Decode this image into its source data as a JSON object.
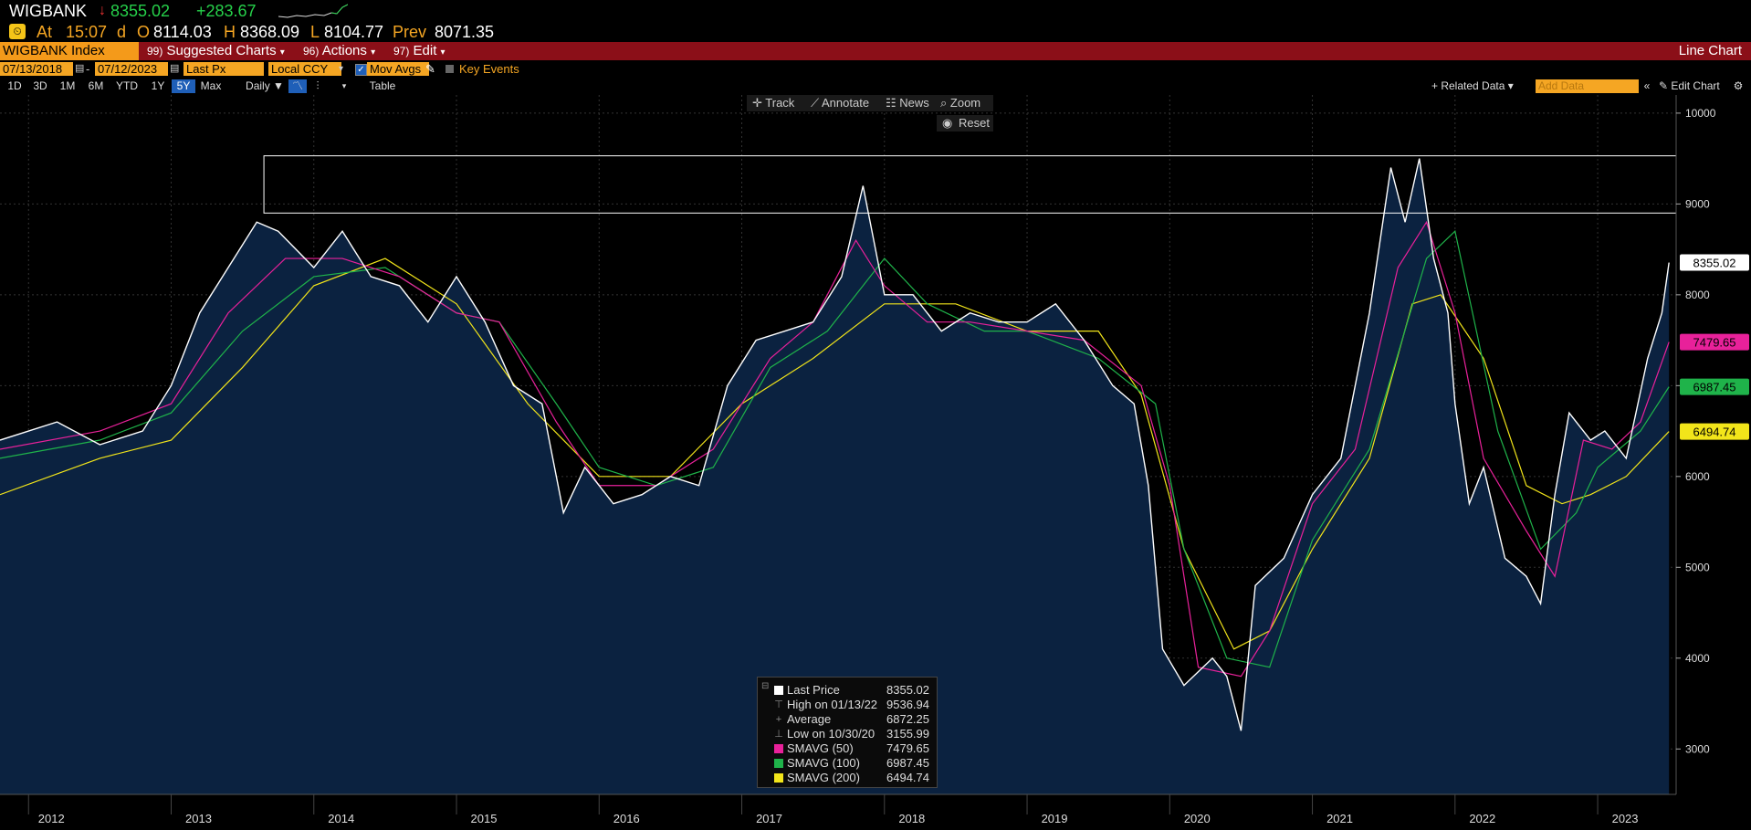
{
  "header": {
    "ticker": "WIGBANK",
    "last": "8355.02",
    "change": "+283.67",
    "at_label": "At",
    "time": "15:07",
    "d_label": "d",
    "open_label": "O",
    "open": "8114.03",
    "high_label": "H",
    "high": "8368.09",
    "low_label": "L",
    "low": "8104.77",
    "prev_label": "Prev",
    "prev": "8071.35"
  },
  "menubar": {
    "security": "WIGBANK Index",
    "suggested_num": "99)",
    "suggested": "Suggested Charts",
    "actions_num": "96)",
    "actions": "Actions",
    "edit_num": "97)",
    "edit": "Edit",
    "chart_type": "Line Chart"
  },
  "options": {
    "start_date": "07/13/2018",
    "end_date": "07/12/2023",
    "price_field": "Last Px",
    "currency": "Local CCY",
    "mov_avgs": "Mov Avgs",
    "key_events": "Key Events",
    "related_data": "+ Related Data",
    "add_data_placeholder": "Add Data",
    "edit_chart": "Edit Chart"
  },
  "ranges": [
    "1D",
    "3D",
    "1M",
    "6M",
    "YTD",
    "1Y",
    "5Y",
    "Max"
  ],
  "active_range": "5Y",
  "frequency": "Daily",
  "table_label": "Table",
  "tools": {
    "track": "Track",
    "annotate": "Annotate",
    "news": "News",
    "zoom": "Zoom",
    "reset": "Reset"
  },
  "colors": {
    "price": "#ffffff",
    "sma50": "#e8219a",
    "sma100": "#1fb34a",
    "sma200": "#f2e51a",
    "fill": "#0b2240",
    "menubar": "#8b0f18",
    "accent": "#f5a623"
  },
  "legend": [
    {
      "label": "Last Price",
      "value": "8355.02",
      "swatch": "#ffffff"
    },
    {
      "label": "High on 01/13/22",
      "value": "9536.94",
      "icon": "⊤"
    },
    {
      "label": "Average",
      "value": "6872.25",
      "icon": "+"
    },
    {
      "label": "Low on 10/30/20",
      "value": "3155.99",
      "icon": "⊥"
    },
    {
      "label": "SMAVG (50)",
      "value": "7479.65",
      "swatch": "#e8219a"
    },
    {
      "label": "SMAVG (100)",
      "value": "6987.45",
      "swatch": "#1fb34a"
    },
    {
      "label": "SMAVG (200)",
      "value": "6494.74",
      "swatch": "#f2e51a"
    }
  ],
  "chart_data": {
    "type": "line",
    "title": "",
    "ylim": [
      2500,
      10200
    ],
    "y_ticks": [
      3000,
      4000,
      5000,
      6000,
      7000,
      8000,
      9000,
      10000
    ],
    "y_tick_labels": [
      "3000",
      "4000",
      "5000",
      "6000",
      "7000",
      "8000",
      "9000",
      "10000"
    ],
    "x_labels": [
      "2012",
      "2013",
      "2014",
      "2015",
      "2016",
      "2017",
      "2018",
      "2019",
      "2020",
      "2021",
      "2022",
      "2023"
    ],
    "xlim": [
      2011.8,
      2023.55
    ],
    "x_label_positions": [
      2012,
      2013,
      2014,
      2015,
      2016,
      2017,
      2018,
      2019,
      2020,
      2021,
      2022,
      2023
    ],
    "end_tags": [
      {
        "value": 8355.02,
        "label": "8355.02",
        "color": "#ffffff"
      },
      {
        "value": 7479.65,
        "label": "7479.65",
        "color": "#e8219a"
      },
      {
        "value": 6987.45,
        "label": "6987.45",
        "color": "#1fb34a"
      },
      {
        "value": 6494.74,
        "label": "6494.74",
        "color": "#f2e51a"
      }
    ],
    "resistance_band": {
      "x_from": 2013.65,
      "x_to": 2023.55,
      "y_low": 8900,
      "y_high": 9530
    },
    "series": [
      {
        "name": "Last Price",
        "color": "#ffffff",
        "x": [
          2011.8,
          2012.2,
          2012.5,
          2012.8,
          2013.0,
          2013.2,
          2013.4,
          2013.6,
          2013.75,
          2014.0,
          2014.2,
          2014.4,
          2014.6,
          2014.8,
          2015.0,
          2015.2,
          2015.4,
          2015.6,
          2015.75,
          2015.9,
          2016.1,
          2016.3,
          2016.5,
          2016.7,
          2016.9,
          2017.1,
          2017.3,
          2017.5,
          2017.7,
          2017.85,
          2018.0,
          2018.2,
          2018.4,
          2018.6,
          2018.8,
          2019.0,
          2019.2,
          2019.4,
          2019.6,
          2019.75,
          2019.85,
          2019.95,
          2020.1,
          2020.3,
          2020.4,
          2020.5,
          2020.6,
          2020.8,
          2021.0,
          2021.2,
          2021.4,
          2021.55,
          2021.65,
          2021.75,
          2021.85,
          2021.95,
          2022.0,
          2022.1,
          2022.2,
          2022.35,
          2022.5,
          2022.6,
          2022.7,
          2022.8,
          2022.95,
          2023.05,
          2023.2,
          2023.35,
          2023.45,
          2023.5
        ],
        "y": [
          6400,
          6600,
          6350,
          6500,
          7000,
          7800,
          8300,
          8800,
          8700,
          8300,
          8700,
          8200,
          8100,
          7700,
          8200,
          7700,
          7000,
          6800,
          5600,
          6100,
          5700,
          5800,
          6000,
          5900,
          7000,
          7500,
          7600,
          7700,
          8200,
          9200,
          8000,
          8000,
          7600,
          7800,
          7700,
          7700,
          7900,
          7500,
          7000,
          6800,
          5900,
          4100,
          3700,
          4000,
          3800,
          3200,
          4800,
          5100,
          5800,
          6200,
          7800,
          9400,
          8800,
          9500,
          8400,
          7800,
          6800,
          5700,
          6100,
          5100,
          4900,
          4600,
          5800,
          6700,
          6400,
          6500,
          6200,
          7300,
          7800,
          8355
        ]
      },
      {
        "name": "SMAVG (50)",
        "color": "#e8219a",
        "x": [
          2011.8,
          2012.5,
          2013.0,
          2013.4,
          2013.8,
          2014.2,
          2014.6,
          2015.0,
          2015.3,
          2015.7,
          2016.0,
          2016.4,
          2016.8,
          2017.2,
          2017.5,
          2017.8,
          2018.0,
          2018.3,
          2018.6,
          2019.0,
          2019.4,
          2019.8,
          2020.0,
          2020.2,
          2020.5,
          2020.7,
          2021.0,
          2021.3,
          2021.6,
          2021.8,
          2022.0,
          2022.2,
          2022.5,
          2022.7,
          2022.9,
          2023.1,
          2023.3,
          2023.5
        ],
        "y": [
          6300,
          6500,
          6800,
          7800,
          8400,
          8400,
          8200,
          7800,
          7700,
          6600,
          5900,
          5900,
          6300,
          7300,
          7700,
          8600,
          8100,
          7700,
          7700,
          7600,
          7500,
          7000,
          5900,
          3900,
          3800,
          4300,
          5700,
          6300,
          8300,
          8800,
          7800,
          6200,
          5400,
          4900,
          6400,
          6300,
          6600,
          7480
        ]
      },
      {
        "name": "SMAVG (100)",
        "color": "#1fb34a",
        "x": [
          2011.8,
          2012.5,
          2013.0,
          2013.5,
          2014.0,
          2014.5,
          2015.0,
          2015.3,
          2015.7,
          2016.0,
          2016.4,
          2016.8,
          2017.2,
          2017.6,
          2018.0,
          2018.3,
          2018.7,
          2019.0,
          2019.5,
          2019.9,
          2020.1,
          2020.4,
          2020.7,
          2021.0,
          2021.4,
          2021.8,
          2022.0,
          2022.3,
          2022.6,
          2022.85,
          2023.0,
          2023.3,
          2023.5
        ],
        "y": [
          6200,
          6400,
          6700,
          7600,
          8200,
          8300,
          7800,
          7700,
          6800,
          6100,
          5900,
          6100,
          7200,
          7600,
          8400,
          7900,
          7600,
          7600,
          7300,
          6800,
          5200,
          4000,
          3900,
          5300,
          6300,
          8400,
          8700,
          6500,
          5200,
          5600,
          6100,
          6500,
          6987
        ]
      },
      {
        "name": "SMAVG (200)",
        "color": "#f2e51a",
        "x": [
          2011.8,
          2012.5,
          2013.0,
          2013.5,
          2014.0,
          2014.5,
          2015.0,
          2015.5,
          2016.0,
          2016.5,
          2017.0,
          2017.5,
          2018.0,
          2018.5,
          2019.0,
          2019.5,
          2019.8,
          2020.1,
          2020.45,
          2020.7,
          2021.0,
          2021.4,
          2021.7,
          2021.9,
          2022.2,
          2022.5,
          2022.75,
          2022.95,
          2023.2,
          2023.5
        ],
        "y": [
          5800,
          6200,
          6400,
          7200,
          8100,
          8400,
          7900,
          6800,
          6000,
          6000,
          6800,
          7300,
          7900,
          7900,
          7600,
          7600,
          6900,
          5200,
          4100,
          4300,
          5200,
          6200,
          7900,
          8000,
          7300,
          5900,
          5700,
          5800,
          6000,
          6495
        ]
      }
    ]
  }
}
